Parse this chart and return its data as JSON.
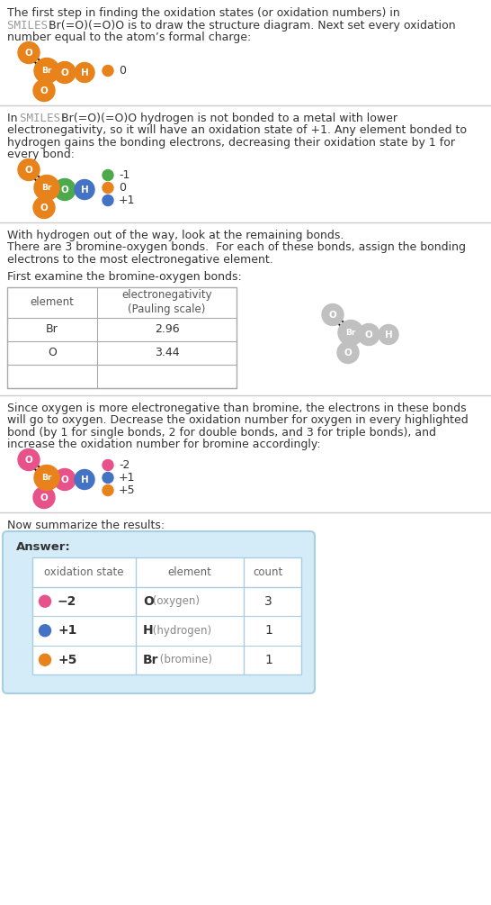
{
  "orange": "#e8821a",
  "green": "#4caa4c",
  "blue": "#4472c4",
  "pink": "#e8528a",
  "gray": "#aaaaaa",
  "bg_color": "#ffffff",
  "text_color": "#333333",
  "smiles_color": "#999999",
  "separator_color": "#cccccc",
  "answer_bg": "#d4ecf7",
  "table_border": "#a8cfe0",
  "sec1_lines": [
    [
      "normal",
      "The first step in finding the oxidation states (or oxidation numbers) in"
    ],
    [
      "smiles_line",
      "SMILES: Br(=O)(=O)O is to draw the structure diagram. Next set every oxidation"
    ],
    [
      "normal",
      "number equal to the atom’s formal charge:"
    ]
  ],
  "sec2_lines": [
    [
      "smiles_inline",
      "In SMILES: Br(=O)(=O)O hydrogen is not bonded to a metal with lower"
    ],
    [
      "normal",
      "electronegativity, so it will have an oxidation state of +1. Any element bonded to"
    ],
    [
      "normal",
      "hydrogen gains the bonding electrons, decreasing their oxidation state by 1 for"
    ],
    [
      "normal",
      "every bond:"
    ]
  ],
  "sec3_lines": [
    [
      "normal",
      "With hydrogen out of the way, look at the remaining bonds."
    ],
    [
      "normal",
      "There are 3 bromine-oxygen bonds.  For each of these bonds, assign the bonding"
    ],
    [
      "normal",
      "electrons to the most electronegative element."
    ]
  ],
  "sec4_line": "First examine the bromine-oxygen bonds:",
  "sec5_lines": [
    [
      "normal",
      "Since oxygen is more electronegative than bromine, the electrons in these bonds"
    ],
    [
      "normal",
      "will go to oxygen. Decrease the oxidation number for oxygen in every highlighted"
    ],
    [
      "normal",
      "bond (by 1 for single bonds, 2 for double bonds, and 3 for triple bonds), and"
    ],
    [
      "normal",
      "increase the oxidation number for bromine accordingly:"
    ]
  ],
  "sec6_line": "Now summarize the results:",
  "answer_label": "Answer:",
  "table_headers": [
    "oxidation state",
    "element",
    "count"
  ],
  "en_table": [
    [
      "Br",
      "2.96"
    ],
    [
      "O",
      "3.44"
    ],
    [
      "",
      ""
    ]
  ],
  "answer_rows": [
    [
      "−2",
      "O",
      "(oxygen)",
      "3"
    ],
    [
      "+1",
      "H",
      "(hydrogen)",
      "1"
    ],
    [
      "+5",
      "Br",
      "(bromine)",
      "1"
    ]
  ],
  "answer_dot_colors": [
    "#e8528a",
    "#4472c4",
    "#e8821a"
  ]
}
